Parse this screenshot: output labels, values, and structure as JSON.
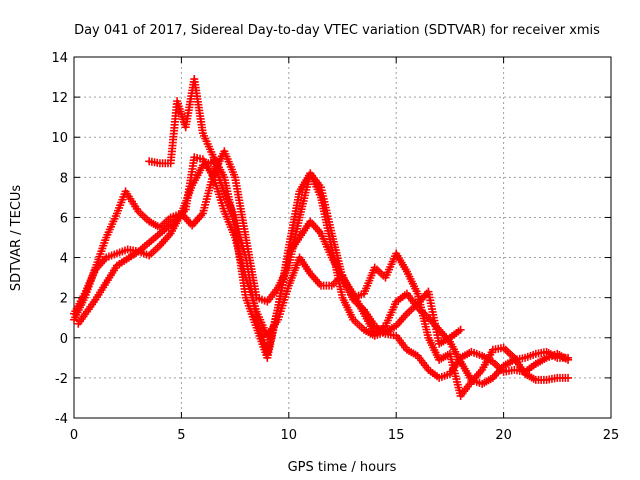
{
  "chart_data": {
    "type": "scatter",
    "title": "Day 041 of 2017, Sidereal Day-to-day VTEC variation (SDTVAR) for receiver xmis",
    "xlabel": "GPS time / hours",
    "ylabel": "SDTVAR / TECUs",
    "xlim": [
      0,
      25
    ],
    "ylim": [
      -4,
      14
    ],
    "xticks": [
      "0",
      "5",
      "10",
      "15",
      "20",
      "25"
    ],
    "yticks": [
      "-4",
      "-2",
      "0",
      "2",
      "4",
      "6",
      "8",
      "10",
      "12",
      "14"
    ],
    "grid": true,
    "marker": "+",
    "color": "#ff0000",
    "series": [
      {
        "x": [
          0.0,
          0.5,
          1.0,
          1.5,
          2.0,
          2.4,
          3.0,
          3.5,
          4.0,
          4.5,
          5.0,
          5.5,
          6.0,
          6.5,
          7.0,
          7.5,
          8.0,
          8.5,
          9.0,
          9.5,
          10.0,
          10.5,
          11.0,
          11.5,
          12.0,
          12.5,
          13.0,
          13.5,
          14.0,
          14.5,
          15.0,
          15.5,
          16.0,
          16.5,
          17.0,
          17.5,
          18.0,
          18.5,
          19.0,
          19.5,
          20.0,
          20.5,
          21.0,
          21.5,
          22.0,
          22.5,
          23.0
        ],
        "y": [
          0.9,
          2.0,
          3.5,
          5.0,
          6.2,
          7.3,
          6.3,
          5.8,
          5.5,
          6.0,
          6.2,
          5.6,
          6.2,
          8.2,
          9.3,
          8.0,
          5.0,
          2.0,
          1.8,
          2.5,
          3.6,
          6.0,
          8.2,
          7.5,
          5.2,
          3.0,
          1.9,
          1.4,
          0.6,
          0.2,
          0.1,
          -0.6,
          -0.9,
          -1.6,
          -2.0,
          -1.8,
          -1.0,
          -0.7,
          -0.9,
          -1.2,
          -1.7,
          -1.6,
          -1.7,
          -1.3,
          -1.0,
          -0.8,
          -1.1
        ]
      },
      {
        "x": [
          0.0,
          0.5,
          1.0,
          1.5,
          2.0,
          2.5,
          3.0,
          3.5,
          4.0,
          4.5,
          5.0,
          5.5,
          6.0,
          6.5,
          7.0,
          7.5,
          8.0,
          8.5,
          9.0,
          9.5,
          10.0,
          10.5,
          11.0,
          11.5,
          12.0,
          12.5,
          13.0,
          13.5,
          14.0,
          14.5,
          15.0,
          15.5,
          16.0,
          16.5,
          17.0,
          17.5,
          18.0,
          18.5,
          19.0,
          19.5,
          20.0,
          20.5,
          21.0,
          21.5,
          22.0,
          22.5,
          23.0
        ],
        "y": [
          1.2,
          2.2,
          3.4,
          4.0,
          4.2,
          4.4,
          4.3,
          4.1,
          4.6,
          5.2,
          6.2,
          7.6,
          8.6,
          8.8,
          7.2,
          6.0,
          4.0,
          1.0,
          -0.8,
          1.5,
          4.2,
          5.0,
          5.8,
          5.2,
          4.0,
          3.0,
          2.2,
          1.2,
          0.2,
          0.6,
          1.8,
          2.2,
          1.5,
          1.0,
          0.4,
          -0.2,
          -1.2,
          -2.1,
          -2.3,
          -2.0,
          -1.4,
          -1.1,
          -1.0,
          -0.8,
          -0.7,
          -1.0,
          -1.0
        ]
      },
      {
        "x": [
          0.2,
          1.0,
          2.0,
          3.0,
          4.0,
          4.8,
          5.2,
          5.6,
          6.0,
          6.5,
          7.0,
          7.5,
          8.0,
          8.5,
          9.0,
          9.5,
          10.0,
          10.5,
          11.0,
          11.5,
          12.0,
          12.5,
          13.0,
          13.5,
          14.0,
          14.5,
          15.0,
          15.5,
          16.0,
          16.5,
          17.0,
          17.5,
          18.0,
          18.5,
          19.0,
          19.5,
          20.0,
          20.5,
          21.0,
          21.5,
          22.0,
          22.5,
          23.0
        ],
        "y": [
          0.7,
          1.9,
          3.6,
          4.3,
          5.2,
          5.9,
          6.4,
          9.0,
          8.9,
          8.0,
          6.3,
          5.0,
          3.0,
          1.3,
          0.1,
          0.9,
          2.6,
          4.0,
          3.2,
          2.6,
          2.6,
          3.1,
          2.0,
          2.2,
          3.5,
          3.0,
          4.2,
          3.3,
          2.2,
          0.0,
          -1.1,
          -0.8,
          -2.9,
          -2.2,
          -1.6,
          -0.6,
          -0.5,
          -1.0,
          -1.8,
          -2.1,
          -2.1,
          -2.0,
          -2.0
        ]
      },
      {
        "x": [
          3.5,
          4.0,
          4.5,
          4.8,
          5.2,
          5.6,
          6.0,
          6.5,
          7.0,
          7.5,
          8.0,
          8.5,
          9.0,
          9.5,
          10.0,
          10.5,
          11.0,
          11.5,
          12.0,
          12.5,
          13.0,
          13.5,
          14.0,
          14.5,
          15.0,
          15.5,
          16.0,
          16.5,
          17.0,
          17.5,
          18.0
        ],
        "y": [
          8.8,
          8.7,
          8.7,
          11.8,
          10.5,
          12.9,
          10.2,
          9.0,
          8.0,
          5.5,
          2.0,
          0.5,
          -1.0,
          1.5,
          4.5,
          7.3,
          8.2,
          7.0,
          4.5,
          2.0,
          0.9,
          0.4,
          0.1,
          0.3,
          0.6,
          1.2,
          1.7,
          2.3,
          -0.3,
          0.0,
          0.4
        ]
      }
    ]
  }
}
